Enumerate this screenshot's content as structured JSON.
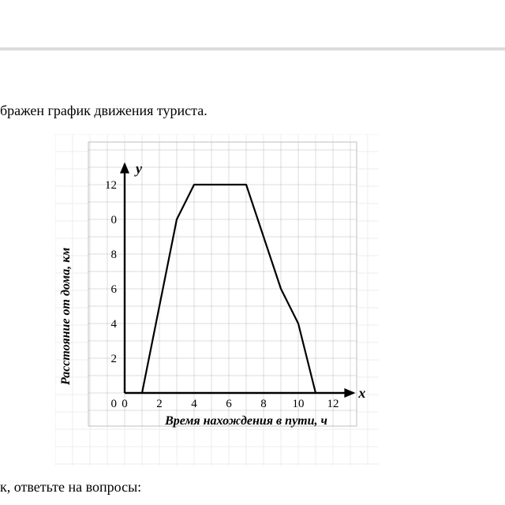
{
  "header_text_fragment": "бражен график движения туриста.",
  "footer_text_fragment": "к, ответьте на вопросы:",
  "chart": {
    "type": "line",
    "y_axis_label": "Расстояние от дома, км",
    "x_axis_label": "Время нахождения в пути, ч",
    "y_symbol": "y",
    "x_symbol": "x",
    "xlim": [
      0,
      14
    ],
    "ylim": [
      0,
      14
    ],
    "x_ticks": [
      0,
      2,
      4,
      6,
      8,
      10,
      12
    ],
    "y_ticks": [
      2,
      4,
      6,
      8,
      0,
      12
    ],
    "y_tick_label_at_10": "0",
    "grid_step": 1,
    "data_points": [
      {
        "x": 1,
        "y": 0
      },
      {
        "x": 3,
        "y": 10
      },
      {
        "x": 4,
        "y": 12
      },
      {
        "x": 7,
        "y": 12
      },
      {
        "x": 9,
        "y": 6
      },
      {
        "x": 10,
        "y": 4
      },
      {
        "x": 11,
        "y": 0
      }
    ],
    "colors": {
      "background": "#ffffff",
      "page_bg_grid": "#eeeeee",
      "plot_grid_minor": "#888888",
      "axis": "#000000",
      "line": "#000000",
      "text": "#000000",
      "frame": "#bfbfbf"
    },
    "line_width": 2.2,
    "axis_width": 2.4,
    "label_fontsize": 16,
    "tick_fontsize": 15,
    "label_font_style": "italic"
  }
}
